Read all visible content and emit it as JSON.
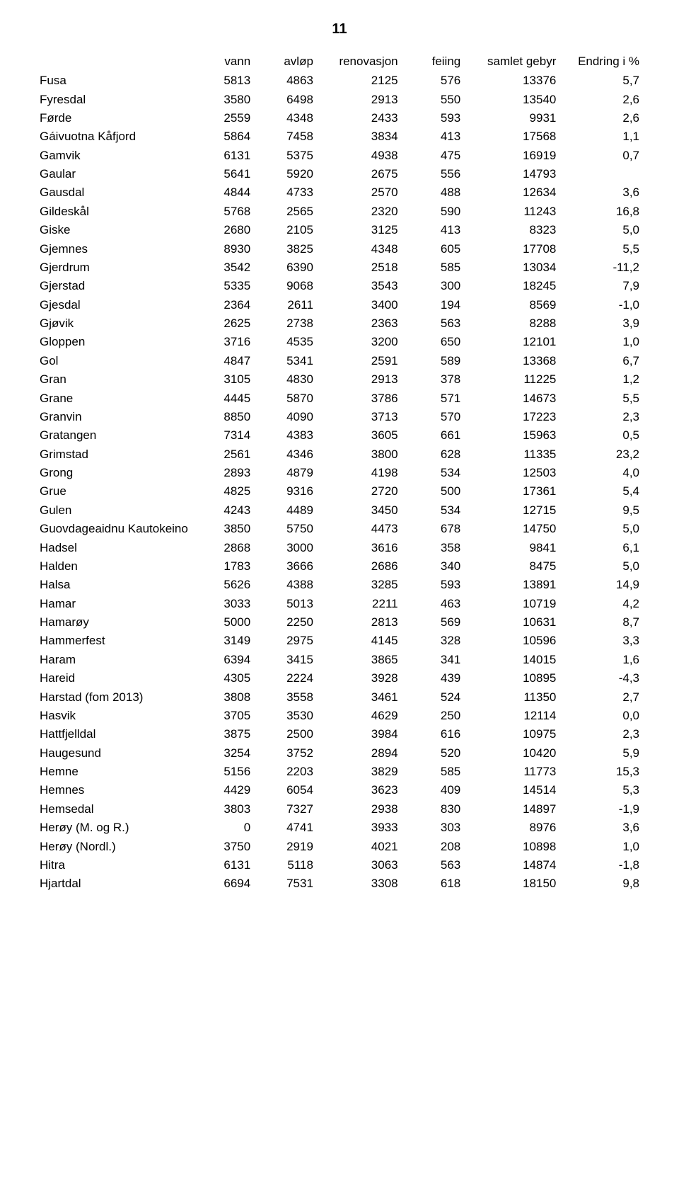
{
  "page_number": "11",
  "columns": [
    "vann",
    "avløp",
    "renovasjon",
    "feiing",
    "samlet gebyr",
    "Endring i %"
  ],
  "rows": [
    {
      "name": "Fusa",
      "vann": "5813",
      "avlop": "4863",
      "renov": "2125",
      "feiing": "576",
      "samlet": "13376",
      "endr": "5,7"
    },
    {
      "name": "Fyresdal",
      "vann": "3580",
      "avlop": "6498",
      "renov": "2913",
      "feiing": "550",
      "samlet": "13540",
      "endr": "2,6"
    },
    {
      "name": "Førde",
      "vann": "2559",
      "avlop": "4348",
      "renov": "2433",
      "feiing": "593",
      "samlet": "9931",
      "endr": "2,6"
    },
    {
      "name": "Gáivuotna Kåfjord",
      "vann": "5864",
      "avlop": "7458",
      "renov": "3834",
      "feiing": "413",
      "samlet": "17568",
      "endr": "1,1"
    },
    {
      "name": "Gamvik",
      "vann": "6131",
      "avlop": "5375",
      "renov": "4938",
      "feiing": "475",
      "samlet": "16919",
      "endr": "0,7"
    },
    {
      "name": "Gaular",
      "vann": "5641",
      "avlop": "5920",
      "renov": "2675",
      "feiing": "556",
      "samlet": "14793",
      "endr": ""
    },
    {
      "name": "Gausdal",
      "vann": "4844",
      "avlop": "4733",
      "renov": "2570",
      "feiing": "488",
      "samlet": "12634",
      "endr": "3,6"
    },
    {
      "name": "Gildeskål",
      "vann": "5768",
      "avlop": "2565",
      "renov": "2320",
      "feiing": "590",
      "samlet": "11243",
      "endr": "16,8"
    },
    {
      "name": "Giske",
      "vann": "2680",
      "avlop": "2105",
      "renov": "3125",
      "feiing": "413",
      "samlet": "8323",
      "endr": "5,0"
    },
    {
      "name": "Gjemnes",
      "vann": "8930",
      "avlop": "3825",
      "renov": "4348",
      "feiing": "605",
      "samlet": "17708",
      "endr": "5,5"
    },
    {
      "name": "Gjerdrum",
      "vann": "3542",
      "avlop": "6390",
      "renov": "2518",
      "feiing": "585",
      "samlet": "13034",
      "endr": "-11,2"
    },
    {
      "name": "Gjerstad",
      "vann": "5335",
      "avlop": "9068",
      "renov": "3543",
      "feiing": "300",
      "samlet": "18245",
      "endr": "7,9"
    },
    {
      "name": "Gjesdal",
      "vann": "2364",
      "avlop": "2611",
      "renov": "3400",
      "feiing": "194",
      "samlet": "8569",
      "endr": "-1,0"
    },
    {
      "name": "Gjøvik",
      "vann": "2625",
      "avlop": "2738",
      "renov": "2363",
      "feiing": "563",
      "samlet": "8288",
      "endr": "3,9"
    },
    {
      "name": "Gloppen",
      "vann": "3716",
      "avlop": "4535",
      "renov": "3200",
      "feiing": "650",
      "samlet": "12101",
      "endr": "1,0"
    },
    {
      "name": "Gol",
      "vann": "4847",
      "avlop": "5341",
      "renov": "2591",
      "feiing": "589",
      "samlet": "13368",
      "endr": "6,7"
    },
    {
      "name": "Gran",
      "vann": "3105",
      "avlop": "4830",
      "renov": "2913",
      "feiing": "378",
      "samlet": "11225",
      "endr": "1,2"
    },
    {
      "name": "Grane",
      "vann": "4445",
      "avlop": "5870",
      "renov": "3786",
      "feiing": "571",
      "samlet": "14673",
      "endr": "5,5"
    },
    {
      "name": "Granvin",
      "vann": "8850",
      "avlop": "4090",
      "renov": "3713",
      "feiing": "570",
      "samlet": "17223",
      "endr": "2,3"
    },
    {
      "name": "Gratangen",
      "vann": "7314",
      "avlop": "4383",
      "renov": "3605",
      "feiing": "661",
      "samlet": "15963",
      "endr": "0,5"
    },
    {
      "name": "Grimstad",
      "vann": "2561",
      "avlop": "4346",
      "renov": "3800",
      "feiing": "628",
      "samlet": "11335",
      "endr": "23,2"
    },
    {
      "name": "Grong",
      "vann": "2893",
      "avlop": "4879",
      "renov": "4198",
      "feiing": "534",
      "samlet": "12503",
      "endr": "4,0"
    },
    {
      "name": "Grue",
      "vann": "4825",
      "avlop": "9316",
      "renov": "2720",
      "feiing": "500",
      "samlet": "17361",
      "endr": "5,4"
    },
    {
      "name": "Gulen",
      "vann": "4243",
      "avlop": "4489",
      "renov": "3450",
      "feiing": "534",
      "samlet": "12715",
      "endr": "9,5"
    },
    {
      "name": "Guovdageaidnu Kautokeino",
      "vann": "3850",
      "avlop": "5750",
      "renov": "4473",
      "feiing": "678",
      "samlet": "14750",
      "endr": "5,0"
    },
    {
      "name": "Hadsel",
      "vann": "2868",
      "avlop": "3000",
      "renov": "3616",
      "feiing": "358",
      "samlet": "9841",
      "endr": "6,1"
    },
    {
      "name": "Halden",
      "vann": "1783",
      "avlop": "3666",
      "renov": "2686",
      "feiing": "340",
      "samlet": "8475",
      "endr": "5,0"
    },
    {
      "name": "Halsa",
      "vann": "5626",
      "avlop": "4388",
      "renov": "3285",
      "feiing": "593",
      "samlet": "13891",
      "endr": "14,9"
    },
    {
      "name": "Hamar",
      "vann": "3033",
      "avlop": "5013",
      "renov": "2211",
      "feiing": "463",
      "samlet": "10719",
      "endr": "4,2"
    },
    {
      "name": "Hamarøy",
      "vann": "5000",
      "avlop": "2250",
      "renov": "2813",
      "feiing": "569",
      "samlet": "10631",
      "endr": "8,7"
    },
    {
      "name": "Hammerfest",
      "vann": "3149",
      "avlop": "2975",
      "renov": "4145",
      "feiing": "328",
      "samlet": "10596",
      "endr": "3,3"
    },
    {
      "name": "Haram",
      "vann": "6394",
      "avlop": "3415",
      "renov": "3865",
      "feiing": "341",
      "samlet": "14015",
      "endr": "1,6"
    },
    {
      "name": "Hareid",
      "vann": "4305",
      "avlop": "2224",
      "renov": "3928",
      "feiing": "439",
      "samlet": "10895",
      "endr": "-4,3"
    },
    {
      "name": "Harstad (fom 2013)",
      "vann": "3808",
      "avlop": "3558",
      "renov": "3461",
      "feiing": "524",
      "samlet": "11350",
      "endr": "2,7"
    },
    {
      "name": "Hasvik",
      "vann": "3705",
      "avlop": "3530",
      "renov": "4629",
      "feiing": "250",
      "samlet": "12114",
      "endr": "0,0"
    },
    {
      "name": "Hattfjelldal",
      "vann": "3875",
      "avlop": "2500",
      "renov": "3984",
      "feiing": "616",
      "samlet": "10975",
      "endr": "2,3"
    },
    {
      "name": "Haugesund",
      "vann": "3254",
      "avlop": "3752",
      "renov": "2894",
      "feiing": "520",
      "samlet": "10420",
      "endr": "5,9"
    },
    {
      "name": "Hemne",
      "vann": "5156",
      "avlop": "2203",
      "renov": "3829",
      "feiing": "585",
      "samlet": "11773",
      "endr": "15,3"
    },
    {
      "name": "Hemnes",
      "vann": "4429",
      "avlop": "6054",
      "renov": "3623",
      "feiing": "409",
      "samlet": "14514",
      "endr": "5,3"
    },
    {
      "name": "Hemsedal",
      "vann": "3803",
      "avlop": "7327",
      "renov": "2938",
      "feiing": "830",
      "samlet": "14897",
      "endr": "-1,9"
    },
    {
      "name": "Herøy (M. og R.)",
      "vann": "0",
      "avlop": "4741",
      "renov": "3933",
      "feiing": "303",
      "samlet": "8976",
      "endr": "3,6"
    },
    {
      "name": "Herøy (Nordl.)",
      "vann": "3750",
      "avlop": "2919",
      "renov": "4021",
      "feiing": "208",
      "samlet": "10898",
      "endr": "1,0"
    },
    {
      "name": "Hitra",
      "vann": "6131",
      "avlop": "5118",
      "renov": "3063",
      "feiing": "563",
      "samlet": "14874",
      "endr": "-1,8"
    },
    {
      "name": "Hjartdal",
      "vann": "6694",
      "avlop": "7531",
      "renov": "3308",
      "feiing": "618",
      "samlet": "18150",
      "endr": "9,8"
    }
  ]
}
